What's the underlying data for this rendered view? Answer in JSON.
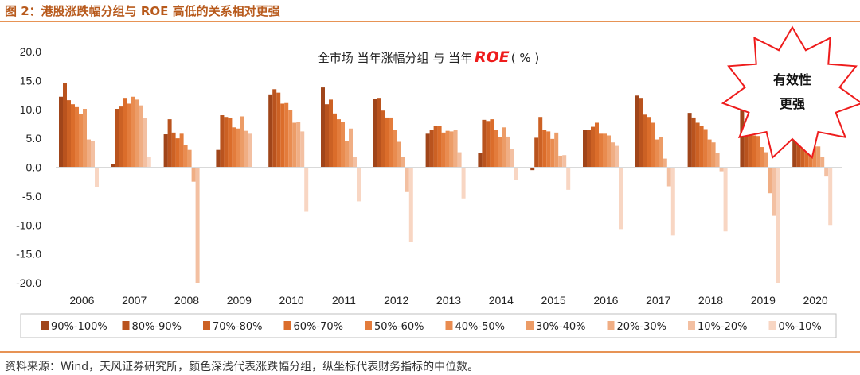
{
  "figure_label": "图 2：港股涨跌幅分组与 ROE 高低的关系相对更强",
  "source_note": "资料来源：Wind，天风证券研究所，颜色深浅代表涨跌幅分组，纵坐标代表财务指标的中位数。",
  "callout": {
    "line1": "有效性",
    "line2": "更强",
    "star_color": "#ee1c1c"
  },
  "chart_data": {
    "type": "bar",
    "title_prefix": "全市场 当年涨幅分组 与 当年",
    "title_highlight": "ROE",
    "title_suffix": "( % )",
    "title_highlight_color": "#ee1c1c",
    "xlabel": "",
    "ylabel": "",
    "ylim": [
      -20,
      20
    ],
    "yticks": [
      "20.0",
      "15.0",
      "10.0",
      "5.0",
      "0.0",
      "-5.0",
      "-10.0",
      "-15.0",
      "-20.0"
    ],
    "categories": [
      "2006",
      "2007",
      "2008",
      "2009",
      "2010",
      "2011",
      "2012",
      "2013",
      "2014",
      "2015",
      "2016",
      "2017",
      "2018",
      "2019",
      "2020"
    ],
    "legend_position": "bottom",
    "grid": false,
    "series": [
      {
        "name": "90%-100%",
        "color": "#a0451a",
        "values": [
          12.2,
          0.6,
          5.7,
          3.0,
          12.6,
          13.8,
          11.8,
          5.8,
          2.5,
          -0.5,
          6.5,
          12.4,
          9.4,
          10.3,
          6.4
        ]
      },
      {
        "name": "80%-90%",
        "color": "#b9531e",
        "values": [
          14.5,
          10.1,
          8.3,
          9.0,
          13.5,
          10.9,
          12.0,
          6.5,
          8.2,
          5.1,
          6.5,
          12.0,
          8.6,
          8.0,
          6.9
        ]
      },
      {
        "name": "70%-80%",
        "color": "#cc6124",
        "values": [
          11.6,
          10.5,
          6.0,
          8.7,
          12.9,
          11.7,
          9.8,
          7.1,
          8.0,
          8.7,
          7.0,
          9.1,
          7.7,
          6.4,
          6.0
        ]
      },
      {
        "name": "60%-70%",
        "color": "#db6d2b",
        "values": [
          10.9,
          12.0,
          5.0,
          8.5,
          11.0,
          9.3,
          8.6,
          7.1,
          8.3,
          6.4,
          7.7,
          8.7,
          7.2,
          5.5,
          4.5
        ]
      },
      {
        "name": "50%-60%",
        "color": "#e37c3c",
        "values": [
          10.4,
          11.0,
          5.8,
          6.9,
          11.1,
          8.3,
          8.6,
          6.0,
          6.5,
          6.2,
          5.8,
          7.7,
          6.6,
          5.4,
          4.2
        ]
      },
      {
        "name": "40%-50%",
        "color": "#e98c50",
        "values": [
          9.2,
          12.2,
          3.8,
          6.7,
          9.9,
          7.9,
          6.4,
          6.3,
          5.2,
          4.9,
          5.8,
          4.8,
          4.8,
          3.5,
          3.6
        ]
      },
      {
        "name": "30%-40%",
        "color": "#ec9c67",
        "values": [
          10.1,
          11.7,
          3.0,
          8.8,
          7.7,
          4.6,
          4.4,
          6.2,
          6.9,
          6.0,
          5.5,
          5.2,
          4.3,
          2.6,
          3.6
        ]
      },
      {
        "name": "20%-30%",
        "color": "#f0ae84",
        "values": [
          4.8,
          10.7,
          -2.5,
          6.3,
          7.8,
          6.7,
          1.8,
          6.5,
          5.3,
          2.0,
          4.3,
          1.5,
          2.5,
          -4.5,
          1.8
        ]
      },
      {
        "name": "10%-20%",
        "color": "#f3c0a2",
        "values": [
          4.6,
          8.5,
          -20.0,
          5.8,
          6.2,
          1.8,
          -4.3,
          2.6,
          3.1,
          2.1,
          3.7,
          -3.3,
          -0.7,
          -8.4,
          -1.6
        ]
      },
      {
        "name": "0%-10%",
        "color": "#f8d6c3",
        "values": [
          -3.5,
          1.8,
          0.0,
          0.0,
          -7.7,
          -5.9,
          -12.9,
          -5.4,
          -2.2,
          -3.9,
          -10.7,
          -11.8,
          -11.1,
          -20.0,
          -10.0
        ]
      }
    ]
  }
}
